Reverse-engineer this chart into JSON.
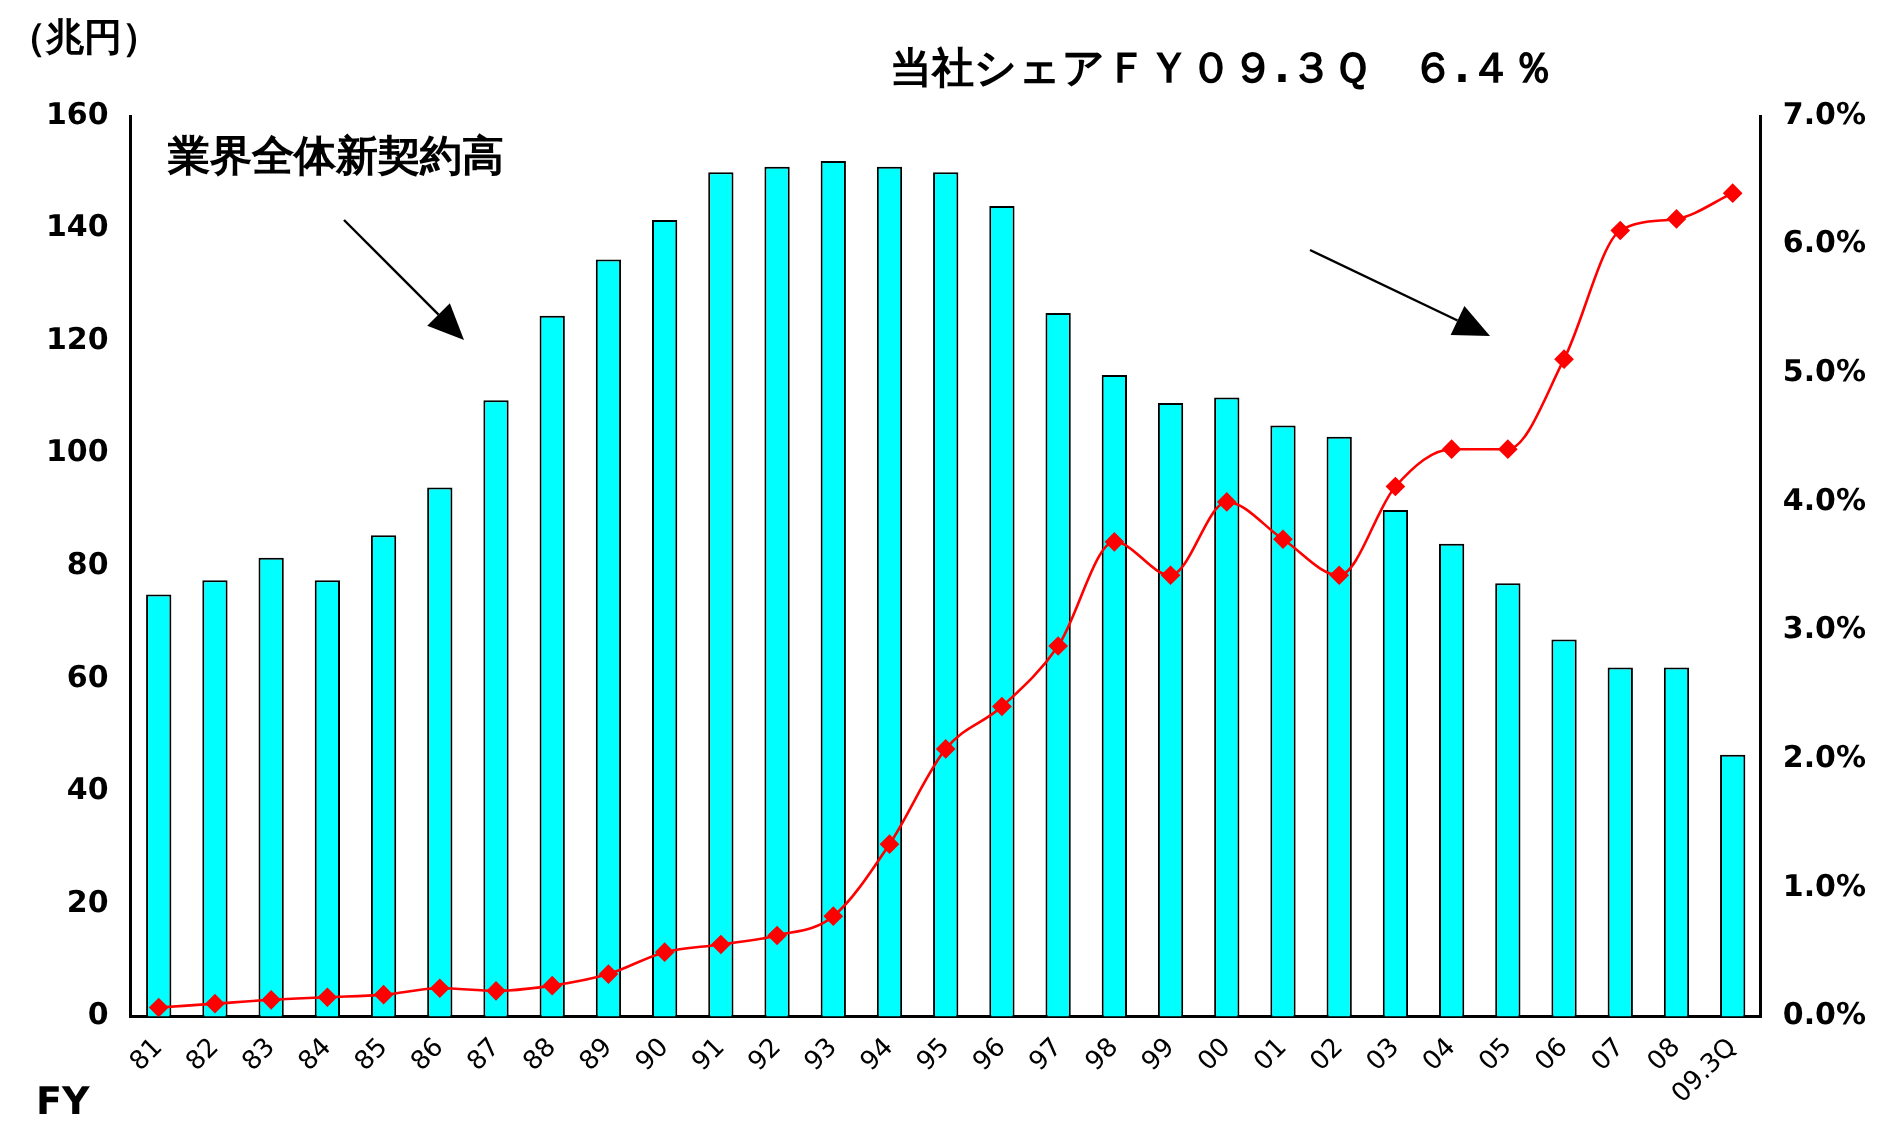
{
  "chart_data": {
    "type": "bar",
    "title": "当社シェアＦＹ０９.３Ｑ　６.４％",
    "ylabel": "（兆円）",
    "xlabel": "FY",
    "annotations": [
      "業界全体新契約高"
    ],
    "categories": [
      "81",
      "82",
      "83",
      "84",
      "85",
      "86",
      "87",
      "88",
      "89",
      "90",
      "91",
      "92",
      "93",
      "94",
      "95",
      "96",
      "97",
      "98",
      "99",
      "00",
      "01",
      "02",
      "03",
      "04",
      "05",
      "06",
      "07",
      "08",
      "09.3Q"
    ],
    "series": [
      {
        "color": "#00ffff",
        "values": [
          75,
          77.5,
          81.5,
          77.5,
          85.5,
          94,
          109.5,
          124.5,
          134.5,
          141.5,
          150,
          151,
          152,
          151,
          150,
          144,
          125,
          114,
          109,
          110,
          105,
          103,
          90,
          84,
          77,
          67,
          62,
          62,
          46.5
        ]
      },
      {
        "type": "line",
        "axis": "y2",
        "color": "#ff0000",
        "marker": "diamond",
        "values": [
          0.07,
          0.1,
          0.13,
          0.15,
          0.17,
          0.22,
          0.2,
          0.24,
          0.33,
          0.5,
          0.56,
          0.63,
          0.78,
          1.34,
          2.08,
          2.41,
          2.88,
          3.69,
          3.43,
          4.0,
          3.71,
          3.43,
          4.12,
          4.41,
          4.41,
          5.11,
          6.11,
          6.2,
          6.4
        ]
      }
    ],
    "ylim": [
      0,
      160
    ],
    "yticks": [
      0,
      20,
      40,
      60,
      80,
      100,
      120,
      140,
      160
    ],
    "y2lim": [
      0,
      7
    ],
    "y2ticks": [
      {
        "value": 0,
        "label": "0.0%"
      },
      {
        "value": 1,
        "label": "1.0%"
      },
      {
        "value": 2,
        "label": "2.0%"
      },
      {
        "value": 3,
        "label": "3.0%"
      },
      {
        "value": 4,
        "label": "4.0%"
      },
      {
        "value": 5,
        "label": "5.0%"
      },
      {
        "value": 6,
        "label": "6.0%"
      },
      {
        "value": 7,
        "label": "7.0%"
      }
    ],
    "grid": false,
    "legend": false
  }
}
